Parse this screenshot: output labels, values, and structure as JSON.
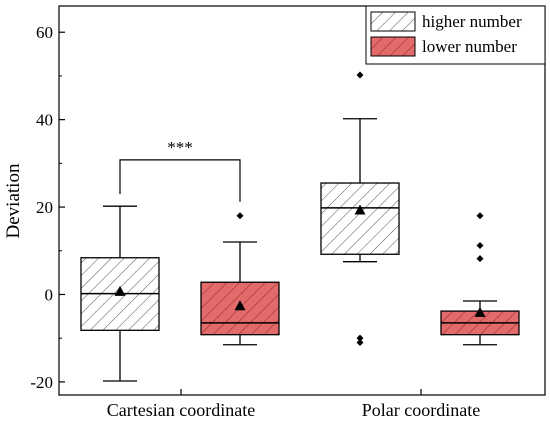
{
  "chart_data": {
    "type": "box",
    "ylabel": "Deviation",
    "xlabel": "",
    "ylim": [
      -23,
      66
    ],
    "yticks": [
      -20,
      0,
      20,
      40,
      60
    ],
    "grid": false,
    "legend_placement": "top-right",
    "categories": [
      "Cartesian coordinate",
      "Polar coordinate"
    ],
    "series": [
      {
        "name": "higher number",
        "fill": "#ffffff",
        "hatch": "#000000",
        "boxes": [
          {
            "category": "Cartesian coordinate",
            "whisker_low": -19.8,
            "q1": -8.2,
            "median": 0.2,
            "q3": 8.4,
            "whisker_high": 20.2,
            "mean": 0.6,
            "outliers": []
          },
          {
            "category": "Polar coordinate",
            "whisker_low": 7.5,
            "q1": 9.2,
            "median": 19.8,
            "q3": 25.5,
            "whisker_high": 40.2,
            "mean": 19.2,
            "outliers": [
              50.2,
              -10.0,
              -11.0
            ]
          }
        ]
      },
      {
        "name": "lower number",
        "fill": "#e26a6a",
        "hatch": "#8a2a2a",
        "boxes": [
          {
            "category": "Cartesian coordinate",
            "whisker_low": -11.5,
            "q1": -9.2,
            "median": -6.5,
            "q3": 2.8,
            "whisker_high": 12.0,
            "mean": -2.7,
            "outliers": [
              18.0
            ]
          },
          {
            "category": "Polar coordinate",
            "whisker_low": -11.5,
            "q1": -9.2,
            "median": -6.5,
            "q3": -3.8,
            "whisker_high": -1.5,
            "mean": -4.2,
            "outliers": [
              18.0,
              11.2,
              8.2
            ]
          }
        ]
      }
    ],
    "annotations": [
      {
        "text": "***",
        "category": "Cartesian coordinate",
        "from_series": 0,
        "to_series": 1,
        "bracket_y": 30.8,
        "drop_to": [
          23.0,
          21.2
        ]
      }
    ]
  }
}
